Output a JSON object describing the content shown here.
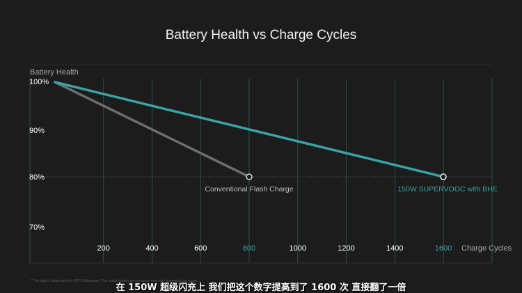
{
  "title": "Battery Health vs Charge Cycles",
  "footnote": "* The data is obtained from OPPO laboratory. The actual battery performance may vary depending on usage.",
  "subtitle": "在 150W 超级闪充上 我们把这个数字提高到了 1600 次 直接翻了一倍",
  "colors": {
    "background": "#1c1c1c",
    "teal": "#3aa3a3",
    "gray": "#6e6e6e",
    "grid": "#2b4f4a",
    "text": "#cfcfcf"
  },
  "chart_data": {
    "type": "line",
    "title": "Battery Health vs Charge Cycles",
    "ylabel": "Battery Health",
    "xlabel": "Charge Cycles",
    "xlim": [
      0,
      1600
    ],
    "ylim": [
      70,
      100
    ],
    "x_ticks": [
      200,
      400,
      600,
      800,
      1000,
      1200,
      1400,
      1600
    ],
    "highlighted_x_ticks": [
      800,
      1600
    ],
    "y_ticks": [
      {
        "value": 100,
        "label": "100%"
      },
      {
        "value": 90,
        "label": "90%"
      },
      {
        "value": 80,
        "label": "80%"
      },
      {
        "value": 70,
        "label": "70%"
      }
    ],
    "grid": true,
    "reference_line": 80,
    "series": [
      {
        "name": "Conventional Flash Charge",
        "color": "#6e6e6e",
        "x": [
          0,
          800
        ],
        "y": [
          100,
          80
        ]
      },
      {
        "name": "150W SUPERVOOC with BHE",
        "color": "#3aa3a3",
        "x": [
          0,
          1600
        ],
        "y": [
          100,
          80
        ]
      }
    ]
  }
}
